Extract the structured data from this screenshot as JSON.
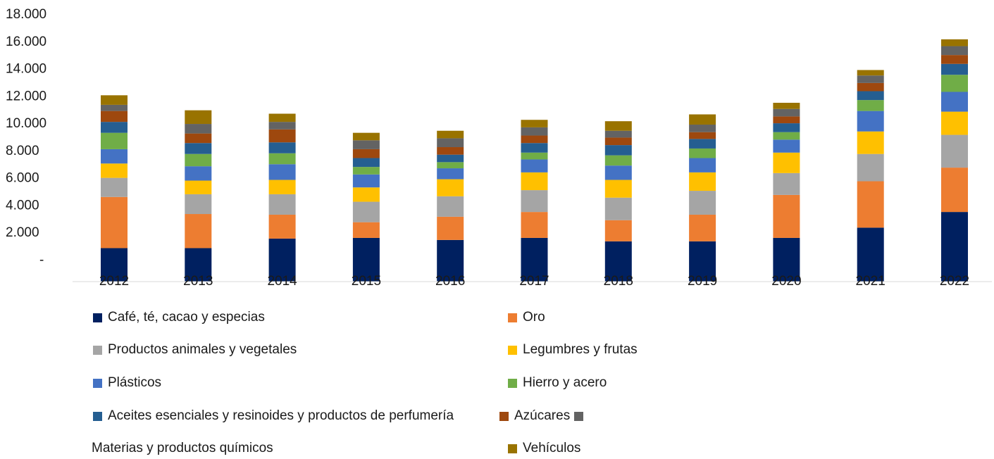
{
  "chart_data": {
    "type": "bar",
    "stacked": true,
    "title": "",
    "xlabel": "",
    "ylabel": "",
    "ylim": [
      0,
      18000
    ],
    "yticks": [
      "-",
      "2.000",
      "4.000",
      "6.000",
      "8.000",
      "10.000",
      "12.000",
      "14.000",
      "16.000",
      "18.000"
    ],
    "categories": [
      "2012",
      "2013",
      "2014",
      "2015",
      "2016",
      "2017",
      "2018",
      "2019",
      "2020",
      "2021",
      "2022"
    ],
    "legend_position": "bottom",
    "series": [
      {
        "name": "Café, té, cacao y especias",
        "color": "#002060",
        "values": [
          800,
          800,
          1500,
          1550,
          1400,
          1550,
          1300,
          1300,
          1550,
          2300,
          3450
        ]
      },
      {
        "name": "Oro",
        "color": "#ED7D31",
        "values": [
          3750,
          2500,
          1750,
          1150,
          1700,
          1900,
          1550,
          1950,
          3150,
          3400,
          3250
        ]
      },
      {
        "name": "Productos animales y vegetales",
        "color": "#A5A5A5",
        "values": [
          1400,
          1450,
          1500,
          1500,
          1500,
          1600,
          1650,
          1750,
          1600,
          2000,
          2400
        ]
      },
      {
        "name": "Legumbres y frutas",
        "color": "#FFC000",
        "values": [
          1050,
          1000,
          1050,
          1050,
          1250,
          1300,
          1300,
          1350,
          1500,
          1650,
          1700
        ]
      },
      {
        "name": "Plásticos",
        "color": "#4472C4",
        "values": [
          1050,
          1050,
          1150,
          950,
          800,
          950,
          1050,
          1050,
          950,
          1500,
          1450
        ]
      },
      {
        "name": "Hierro y acero",
        "color": "#70AD47",
        "values": [
          1200,
          900,
          800,
          550,
          450,
          500,
          750,
          700,
          550,
          800,
          1250
        ]
      },
      {
        "name": "Aceites esenciales y resinoides y productos de perfumería",
        "color": "#255E91",
        "values": [
          800,
          800,
          800,
          650,
          550,
          700,
          750,
          700,
          650,
          650,
          800
        ]
      },
      {
        "name": "Azúcares",
        "color": "#9E480E",
        "values": [
          800,
          700,
          950,
          650,
          550,
          550,
          550,
          500,
          500,
          600,
          650
        ]
      },
      {
        "name": "Materias y productos químicos",
        "color": "#636363",
        "values": [
          450,
          700,
          550,
          650,
          650,
          600,
          500,
          550,
          550,
          550,
          650
        ]
      },
      {
        "name": "Vehículos",
        "color": "#997300",
        "values": [
          700,
          1000,
          600,
          550,
          550,
          550,
          700,
          750,
          450,
          400,
          500
        ]
      }
    ]
  }
}
